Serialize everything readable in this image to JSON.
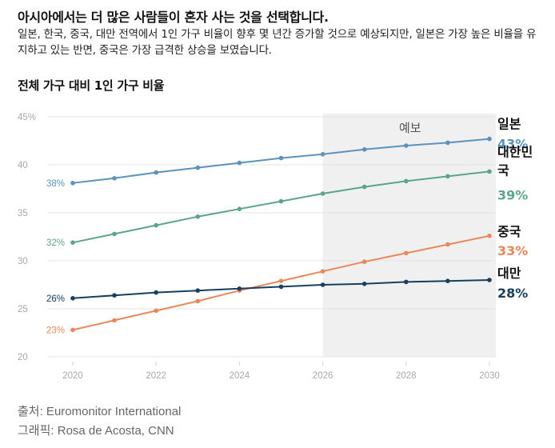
{
  "headline": "아시아에서는 더 많은 사람들이 혼자 사는 것을 선택합니다.",
  "subhead": "일본, 한국, 중국, 대만 전역에서 1인 가구 비율이 향후 몇 년간 증가할 것으로 예상되지만, 일본은 가장 높은 비율을 유지하고 있는 반면, 중국은 가장 급격한 상승을 보였습니다.",
  "source": "출처: Euromonitor International",
  "credit": "그래픽: Rosa de Acosta, CNN",
  "colors": {
    "japan": "#5b93bd",
    "korea": "#5aa58c",
    "china": "#e8885a",
    "taiwan": "#173f60",
    "forecast_bg": "#f0f0f0",
    "grid": "#e4e4e4",
    "tick": "#a8a8a8"
  },
  "chart_data": {
    "type": "line",
    "title": "전체 가구 대비 1인 가구 비율",
    "xlabel": "",
    "ylabel": "",
    "x": [
      2020,
      2021,
      2022,
      2023,
      2024,
      2025,
      2026,
      2027,
      2028,
      2029,
      2030
    ],
    "x_ticks": [
      "2020",
      "2022",
      "2024",
      "2026",
      "2028",
      "2030"
    ],
    "y_ticks": [
      "20",
      "25",
      "30",
      "35",
      "40",
      "45%"
    ],
    "ylim": [
      20,
      45
    ],
    "xlim": [
      2020,
      2030
    ],
    "grid": false,
    "forecast_region": {
      "from": 2026,
      "to": 2030,
      "label": "예보"
    },
    "series": [
      {
        "name": "일본",
        "color": "#5b93bd",
        "start_label": "38%",
        "end_label": "43%",
        "values": [
          38.1,
          38.6,
          39.2,
          39.7,
          40.2,
          40.7,
          41.1,
          41.6,
          42.0,
          42.3,
          42.7
        ]
      },
      {
        "name": "대한민국",
        "color": "#5aa58c",
        "start_label": "32%",
        "end_label": "39%",
        "values": [
          31.9,
          32.8,
          33.7,
          34.6,
          35.4,
          36.2,
          37.0,
          37.7,
          38.3,
          38.8,
          39.3
        ]
      },
      {
        "name": "중국",
        "color": "#e8885a",
        "start_label": "23%",
        "end_label": "33%",
        "values": [
          22.8,
          23.8,
          24.8,
          25.8,
          26.9,
          27.9,
          28.9,
          29.9,
          30.8,
          31.7,
          32.6
        ]
      },
      {
        "name": "대만",
        "color": "#173f60",
        "start_label": "26%",
        "end_label": "28%",
        "values": [
          26.1,
          26.4,
          26.7,
          26.9,
          27.1,
          27.3,
          27.5,
          27.6,
          27.8,
          27.9,
          28.0
        ]
      }
    ]
  }
}
